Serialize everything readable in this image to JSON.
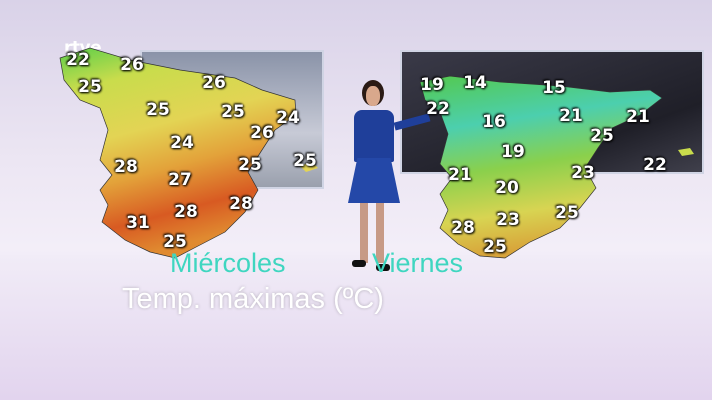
{
  "channel_logo": "rtve",
  "title": "Temp. máximas (ºC)",
  "maps": [
    {
      "day": "Miércoles",
      "temperatures": [
        "22",
        "26",
        "25",
        "26",
        "25",
        "25",
        "24",
        "26",
        "24",
        "28",
        "25",
        "25",
        "27",
        "28",
        "28",
        "31",
        "25"
      ]
    },
    {
      "day": "Viernes",
      "temperatures": [
        "19",
        "14",
        "15",
        "22",
        "16",
        "21",
        "21",
        "25",
        "19",
        "22",
        "21",
        "23",
        "20",
        "25",
        "23",
        "28",
        "25"
      ]
    }
  ],
  "colors": {
    "day_label": "#3fd6c0",
    "hot": "#d8221c",
    "warm": "#e5a23a",
    "mild": "#e3e05a",
    "cool": "#5ccf4a",
    "cold": "#3fc7c9"
  }
}
